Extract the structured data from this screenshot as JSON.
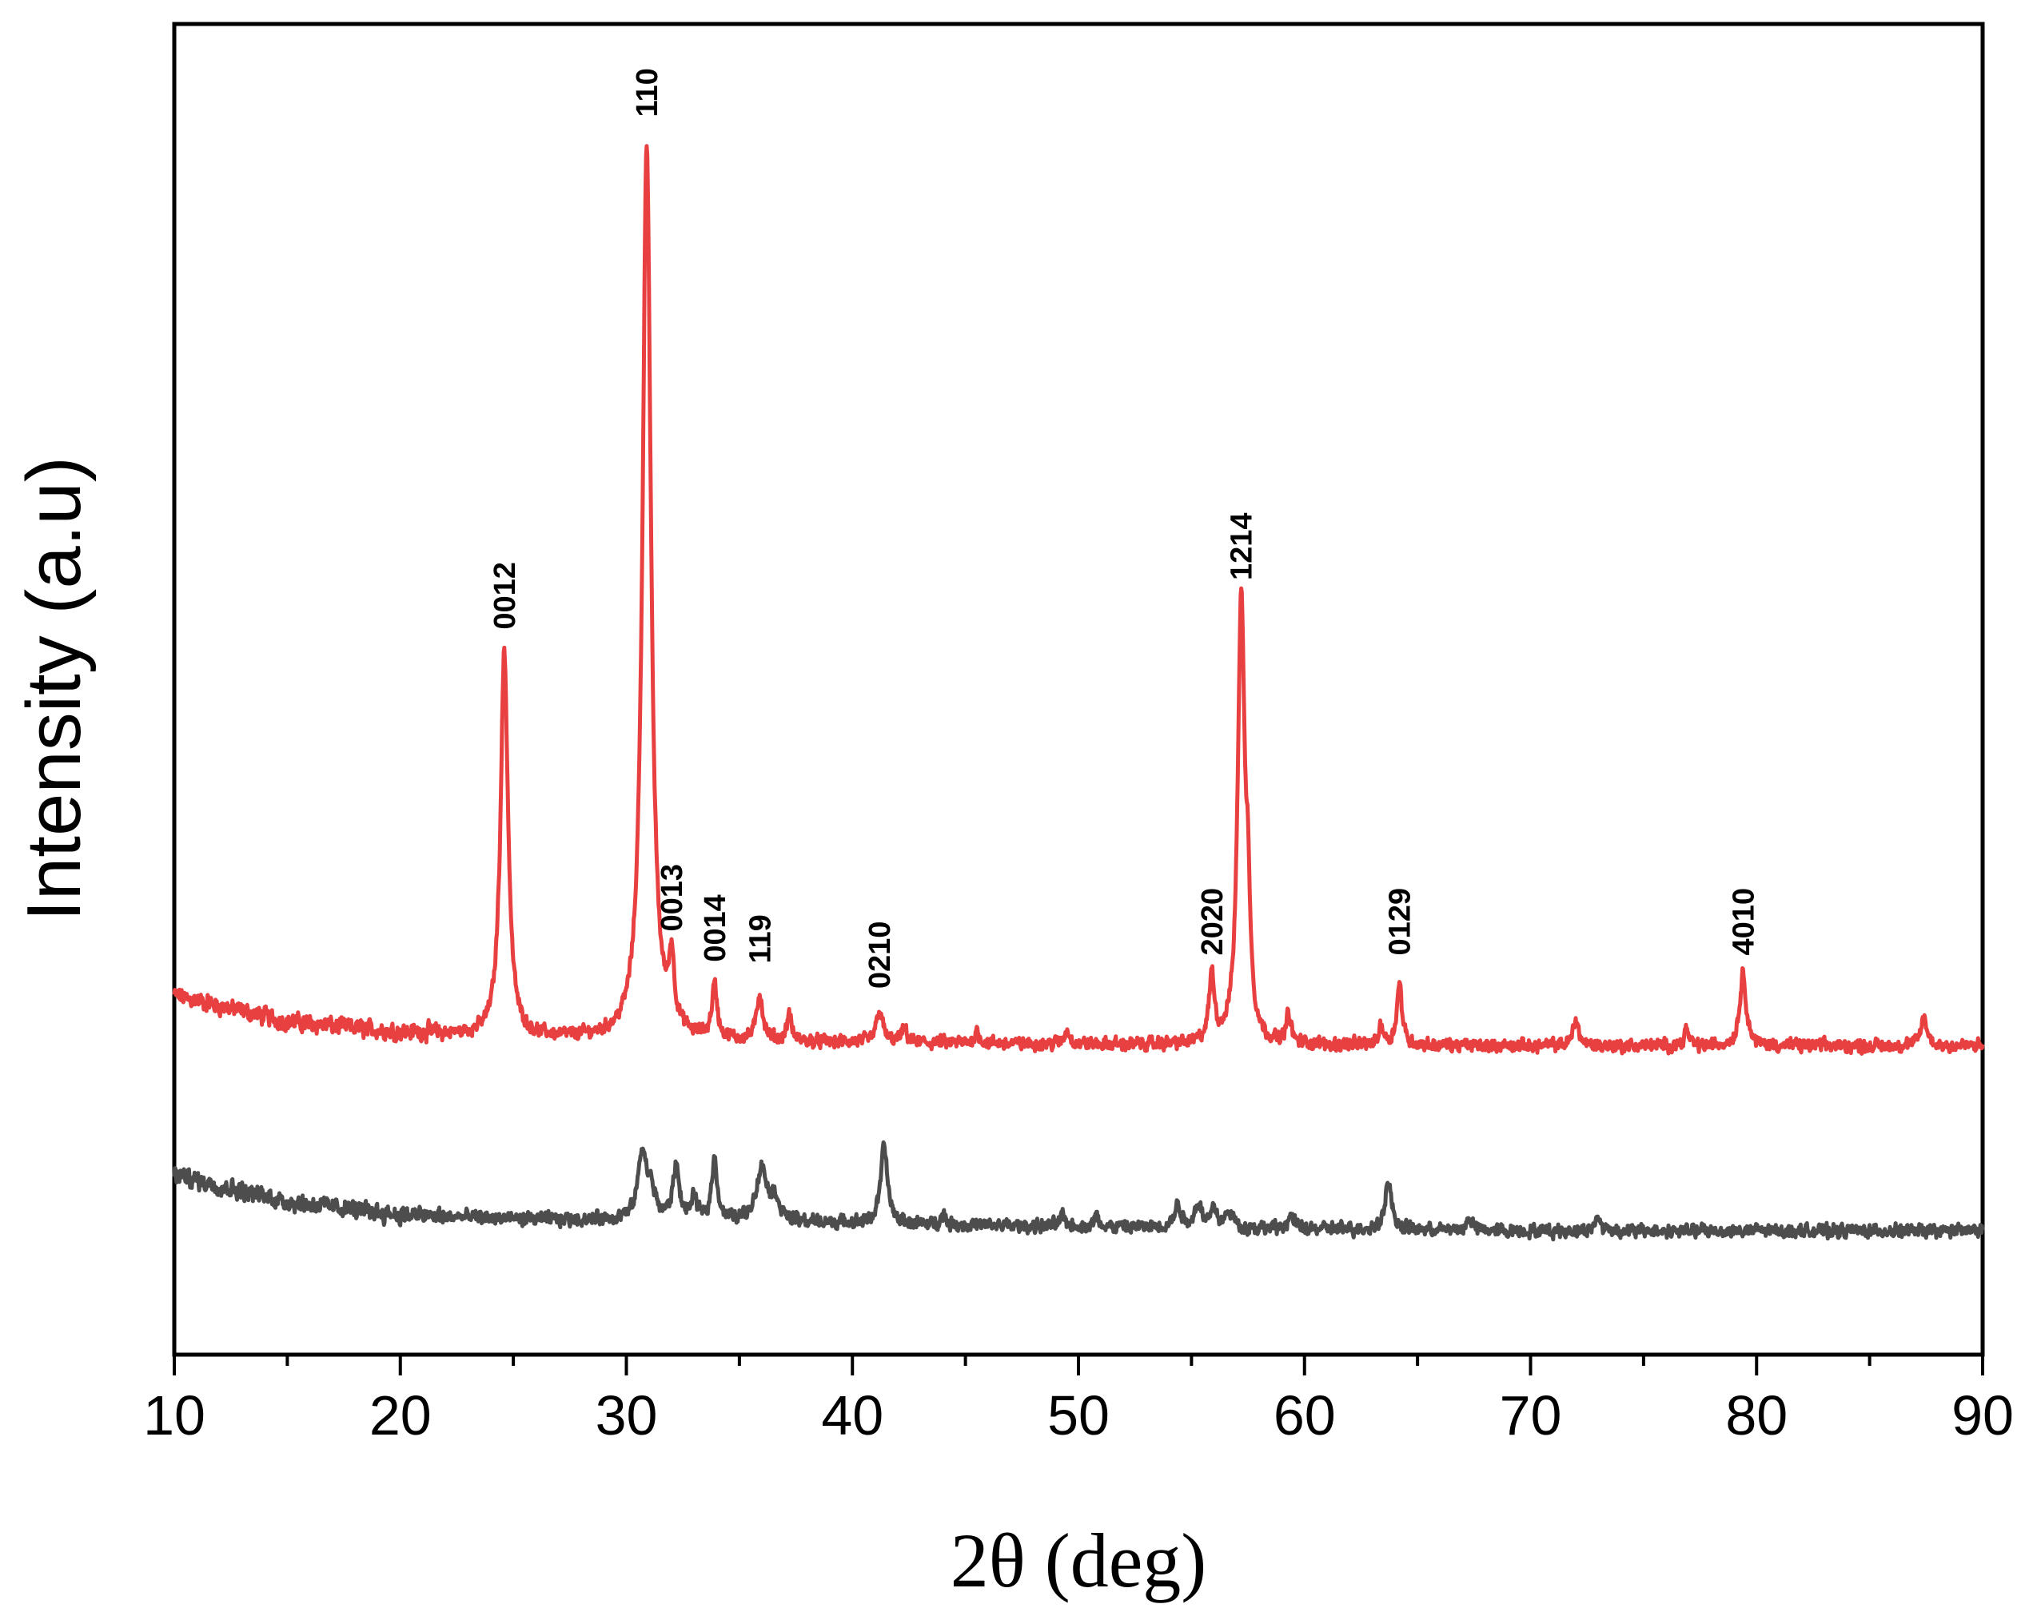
{
  "chart_data": {
    "type": "line",
    "xlabel": "2θ (deg)",
    "ylabel": "Intensity (a.u)",
    "xlim": [
      10,
      90
    ],
    "ylim": [
      0,
      100
    ],
    "x_ticks": [
      "10",
      "20",
      "30",
      "40",
      "50",
      "60",
      "70",
      "80",
      "90"
    ],
    "x_tick_values": [
      10,
      20,
      30,
      40,
      50,
      60,
      70,
      80,
      90
    ],
    "y_ticks_labeled": false,
    "grid": false,
    "legend": "none",
    "series": [
      {
        "color": "#e84040",
        "baseline": [
          [
            10,
            27
          ],
          [
            15,
            25
          ],
          [
            20,
            24.2
          ],
          [
            25,
            23.8
          ],
          [
            35,
            23.5
          ],
          [
            50,
            23.3
          ],
          [
            70,
            23.2
          ],
          [
            90,
            23.2
          ]
        ],
        "peaks": [
          {
            "x": 24.6,
            "h": 29.0,
            "w": 0.2
          },
          {
            "x": 30.9,
            "h": 67.5,
            "w": 0.22
          },
          {
            "x": 32.0,
            "h": 5.0,
            "w": 0.14
          },
          {
            "x": 33.9,
            "h": 4.0,
            "w": 0.14
          },
          {
            "x": 35.9,
            "h": 3.5,
            "w": 0.16
          },
          {
            "x": 37.2,
            "h": 2.0,
            "w": 0.12
          },
          {
            "x": 41.2,
            "h": 2.5,
            "w": 0.16
          },
          {
            "x": 42.3,
            "h": 1.0,
            "w": 0.15
          },
          {
            "x": 45.5,
            "h": 1.0,
            "w": 0.12
          },
          {
            "x": 49.5,
            "h": 1.0,
            "w": 0.15
          },
          {
            "x": 55.9,
            "h": 5.0,
            "w": 0.14
          },
          {
            "x": 57.2,
            "h": 33.5,
            "w": 0.18
          },
          {
            "x": 57.5,
            "h": 8.0,
            "w": 0.12
          },
          {
            "x": 59.3,
            "h": 2.2,
            "w": 0.12
          },
          {
            "x": 63.4,
            "h": 1.5,
            "w": 0.12
          },
          {
            "x": 64.2,
            "h": 4.6,
            "w": 0.14
          },
          {
            "x": 72.0,
            "h": 2.0,
            "w": 0.15
          },
          {
            "x": 76.9,
            "h": 1.2,
            "w": 0.12
          },
          {
            "x": 79.4,
            "h": 5.5,
            "w": 0.17
          },
          {
            "x": 87.4,
            "h": 2.2,
            "w": 0.15
          }
        ]
      },
      {
        "color": "#4d4d4d",
        "baseline": [
          [
            10,
            13.5
          ],
          [
            15,
            11.5
          ],
          [
            20,
            10.5
          ],
          [
            25,
            10.2
          ],
          [
            35,
            10.0
          ],
          [
            50,
            9.6
          ],
          [
            70,
            9.3
          ],
          [
            90,
            9.3
          ]
        ],
        "peaks": [
          {
            "x": 30.7,
            "h": 5.0,
            "w": 0.22
          },
          {
            "x": 31.1,
            "h": 2.0,
            "w": 0.22
          },
          {
            "x": 32.2,
            "h": 4.0,
            "w": 0.17
          },
          {
            "x": 33.0,
            "h": 1.5,
            "w": 0.15
          },
          {
            "x": 33.9,
            "h": 4.6,
            "w": 0.15
          },
          {
            "x": 36.0,
            "h": 4.0,
            "w": 0.3
          },
          {
            "x": 36.6,
            "h": 1.5,
            "w": 0.2
          },
          {
            "x": 41.4,
            "h": 5.8,
            "w": 0.18
          },
          {
            "x": 44.0,
            "h": 0.8,
            "w": 0.12
          },
          {
            "x": 49.3,
            "h": 0.8,
            "w": 0.15
          },
          {
            "x": 50.8,
            "h": 0.8,
            "w": 0.12
          },
          {
            "x": 54.4,
            "h": 1.7,
            "w": 0.18
          },
          {
            "x": 55.3,
            "h": 1.8,
            "w": 0.18
          },
          {
            "x": 56.0,
            "h": 1.4,
            "w": 0.18
          },
          {
            "x": 56.7,
            "h": 1.2,
            "w": 0.18
          },
          {
            "x": 59.4,
            "h": 1.0,
            "w": 0.15
          },
          {
            "x": 63.7,
            "h": 3.5,
            "w": 0.18
          },
          {
            "x": 67.3,
            "h": 0.9,
            "w": 0.15
          },
          {
            "x": 73.0,
            "h": 1.0,
            "w": 0.15
          }
        ]
      }
    ],
    "annotations": [
      {
        "text": "0012",
        "x": 24.6,
        "y": 54.5
      },
      {
        "text": "110",
        "x": 30.9,
        "y": 93.0
      },
      {
        "text": "0013",
        "x": 32.0,
        "y": 31.8
      },
      {
        "text": "0014",
        "x": 33.9,
        "y": 29.5
      },
      {
        "text": "119",
        "x": 35.9,
        "y": 29.4
      },
      {
        "text": "0210",
        "x": 41.2,
        "y": 27.5
      },
      {
        "text": "2020",
        "x": 55.9,
        "y": 30.0
      },
      {
        "text": "1214",
        "x": 57.2,
        "y": 58.2
      },
      {
        "text": "0129",
        "x": 64.2,
        "y": 30.0
      },
      {
        "text": "4010",
        "x": 79.4,
        "y": 30.0
      }
    ]
  }
}
